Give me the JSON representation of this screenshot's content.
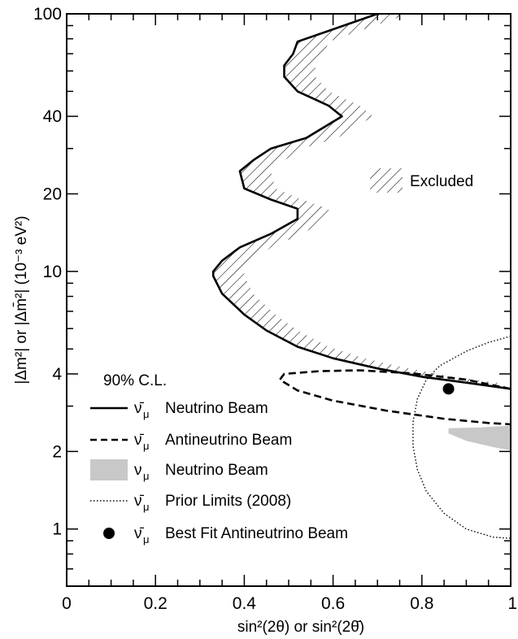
{
  "chart_data": {
    "type": "line",
    "xlabel": "sin²(2θ) or sin²(2θ̄)",
    "ylabel": "|Δm²| or |Δm̄²| (10⁻³ eV²)",
    "xscale": "linear",
    "yscale": "log",
    "xlim": [
      0,
      1
    ],
    "ylim": [
      0.6,
      100
    ],
    "x_ticks": [
      {
        "value": 0,
        "label": "0"
      },
      {
        "value": 0.2,
        "label": "0.2"
      },
      {
        "value": 0.4,
        "label": "0.4"
      },
      {
        "value": 0.6,
        "label": "0.6"
      },
      {
        "value": 0.8,
        "label": "0.8"
      },
      {
        "value": 1,
        "label": "1"
      }
    ],
    "y_ticks": [
      {
        "value": 1,
        "label": "1"
      },
      {
        "value": 2,
        "label": "2"
      },
      {
        "value": 4,
        "label": "4"
      },
      {
        "value": 10,
        "label": "10"
      },
      {
        "value": 20,
        "label": "20"
      },
      {
        "value": 40,
        "label": "40"
      },
      {
        "value": 100,
        "label": "100"
      }
    ],
    "excluded_label": "Excluded",
    "legend": {
      "position": "bottom-left",
      "title": "90% C.L.",
      "entries": [
        {
          "key": "neutrino_beam",
          "symbol": "ν̄",
          "subscript": "μ",
          "label": "Neutrino Beam",
          "style": "solid"
        },
        {
          "key": "antineutrino_beam",
          "symbol": "ν̄",
          "subscript": "μ",
          "label": "Antineutrino Beam",
          "style": "dashed"
        },
        {
          "key": "nu_neutrino_beam",
          "symbol": "ν",
          "subscript": "μ",
          "label": "Neutrino Beam",
          "style": "filled"
        },
        {
          "key": "prior_limits",
          "symbol": "ν̄",
          "subscript": "μ",
          "label": "Prior Limits (2008)",
          "style": "dotted"
        },
        {
          "key": "best_fit",
          "symbol": "ν̄",
          "subscript": "μ",
          "label": "Best Fit Antineutrino Beam",
          "style": "marker"
        }
      ]
    },
    "series": {
      "neutrino_beam": [
        {
          "x": 0.7,
          "y": 100
        },
        {
          "x": 0.52,
          "y": 78
        },
        {
          "x": 0.51,
          "y": 70
        },
        {
          "x": 0.49,
          "y": 63
        },
        {
          "x": 0.49,
          "y": 57
        },
        {
          "x": 0.52,
          "y": 50
        },
        {
          "x": 0.59,
          "y": 44
        },
        {
          "x": 0.62,
          "y": 40
        },
        {
          "x": 0.54,
          "y": 33
        },
        {
          "x": 0.46,
          "y": 30
        },
        {
          "x": 0.42,
          "y": 27
        },
        {
          "x": 0.39,
          "y": 24.5
        },
        {
          "x": 0.4,
          "y": 21
        },
        {
          "x": 0.46,
          "y": 19
        },
        {
          "x": 0.52,
          "y": 17.5
        },
        {
          "x": 0.52,
          "y": 16
        },
        {
          "x": 0.46,
          "y": 14
        },
        {
          "x": 0.39,
          "y": 12.4
        },
        {
          "x": 0.35,
          "y": 11
        },
        {
          "x": 0.33,
          "y": 10
        },
        {
          "x": 0.33,
          "y": 9.6
        },
        {
          "x": 0.35,
          "y": 8.2
        },
        {
          "x": 0.4,
          "y": 6.8
        },
        {
          "x": 0.45,
          "y": 5.9
        },
        {
          "x": 0.52,
          "y": 5.1
        },
        {
          "x": 0.6,
          "y": 4.6
        },
        {
          "x": 0.7,
          "y": 4.2
        },
        {
          "x": 0.8,
          "y": 3.9
        },
        {
          "x": 0.9,
          "y": 3.7
        },
        {
          "x": 1.0,
          "y": 3.5
        }
      ],
      "antineutrino_beam": [
        {
          "x": 1.0,
          "y": 3.5
        },
        {
          "x": 0.9,
          "y": 3.8
        },
        {
          "x": 0.78,
          "y": 4.02
        },
        {
          "x": 0.66,
          "y": 4.13
        },
        {
          "x": 0.57,
          "y": 4.1
        },
        {
          "x": 0.49,
          "y": 4.0
        },
        {
          "x": 0.48,
          "y": 3.8
        },
        {
          "x": 0.52,
          "y": 3.45
        },
        {
          "x": 0.6,
          "y": 3.15
        },
        {
          "x": 0.72,
          "y": 2.88
        },
        {
          "x": 0.85,
          "y": 2.68
        },
        {
          "x": 0.95,
          "y": 2.58
        },
        {
          "x": 1.0,
          "y": 2.55
        }
      ],
      "nu_neutrino_beam_region": [
        {
          "x": 0.86,
          "y": 2.46
        },
        {
          "x": 0.93,
          "y": 2.48
        },
        {
          "x": 1.0,
          "y": 2.52
        },
        {
          "x": 1.0,
          "y": 2.02
        },
        {
          "x": 0.96,
          "y": 2.08
        },
        {
          "x": 0.9,
          "y": 2.2
        },
        {
          "x": 0.86,
          "y": 2.35
        }
      ],
      "prior_limits": [
        {
          "x": 1.0,
          "y": 5.6
        },
        {
          "x": 0.95,
          "y": 5.3
        },
        {
          "x": 0.9,
          "y": 4.9
        },
        {
          "x": 0.84,
          "y": 4.3
        },
        {
          "x": 0.81,
          "y": 3.8
        },
        {
          "x": 0.79,
          "y": 3.2
        },
        {
          "x": 0.78,
          "y": 2.6
        },
        {
          "x": 0.78,
          "y": 2.1
        },
        {
          "x": 0.79,
          "y": 1.7
        },
        {
          "x": 0.81,
          "y": 1.4
        },
        {
          "x": 0.85,
          "y": 1.15
        },
        {
          "x": 0.9,
          "y": 1.0
        },
        {
          "x": 0.96,
          "y": 0.93
        },
        {
          "x": 1.0,
          "y": 0.92
        }
      ],
      "best_fit": {
        "x": 0.86,
        "y": 3.5
      }
    }
  }
}
